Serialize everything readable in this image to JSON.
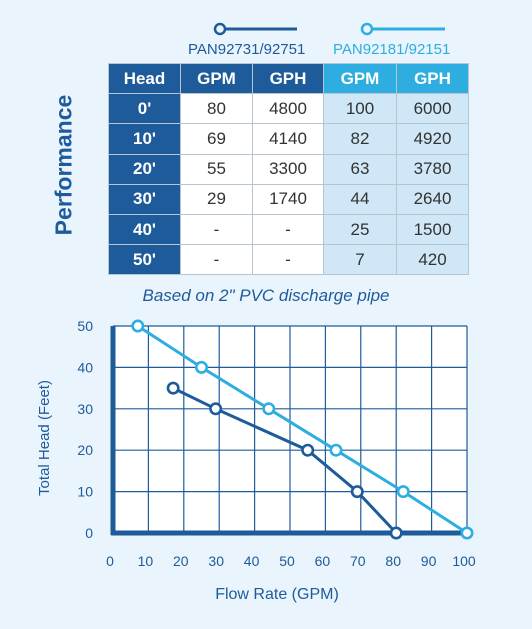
{
  "legend": {
    "series_a": "PAN92731/92751",
    "series_b": "PAN92181/92151"
  },
  "side_label": "Performance",
  "table": {
    "header": [
      "Head",
      "GPM",
      "GPH",
      "GPM",
      "GPH"
    ],
    "rows": [
      [
        "0'",
        "80",
        "4800",
        "100",
        "6000"
      ],
      [
        "10'",
        "69",
        "4140",
        "82",
        "4920"
      ],
      [
        "20'",
        "55",
        "3300",
        "63",
        "3780"
      ],
      [
        "30'",
        "29",
        "1740",
        "44",
        "2640"
      ],
      [
        "40'",
        "-",
        "-",
        "25",
        "1500"
      ],
      [
        "50'",
        "-",
        "-",
        "7",
        "420"
      ]
    ]
  },
  "note": "Based on 2\" PVC discharge pipe",
  "colors": {
    "series_a": "#1e5b9b",
    "series_b": "#2eaee0",
    "background": "#e9f4fc"
  },
  "chart_data": {
    "type": "line",
    "xlabel": "Flow Rate (GPM)",
    "ylabel": "Total Head (Feet)",
    "xlim": [
      0,
      100
    ],
    "ylim": [
      0,
      50
    ],
    "x_ticks": [
      0,
      10,
      20,
      30,
      40,
      50,
      60,
      70,
      80,
      90,
      100
    ],
    "y_ticks": [
      0,
      10,
      20,
      30,
      40,
      50
    ],
    "grid": true,
    "series": [
      {
        "name": "PAN92731/92751",
        "color": "#1e5b9b",
        "points": [
          [
            17,
            35
          ],
          [
            29,
            30
          ],
          [
            55,
            20
          ],
          [
            69,
            10
          ],
          [
            80,
            0
          ]
        ]
      },
      {
        "name": "PAN92181/92151",
        "color": "#2eaee0",
        "points": [
          [
            7,
            50
          ],
          [
            25,
            40
          ],
          [
            44,
            30
          ],
          [
            63,
            20
          ],
          [
            82,
            10
          ],
          [
            100,
            0
          ]
        ]
      }
    ]
  }
}
